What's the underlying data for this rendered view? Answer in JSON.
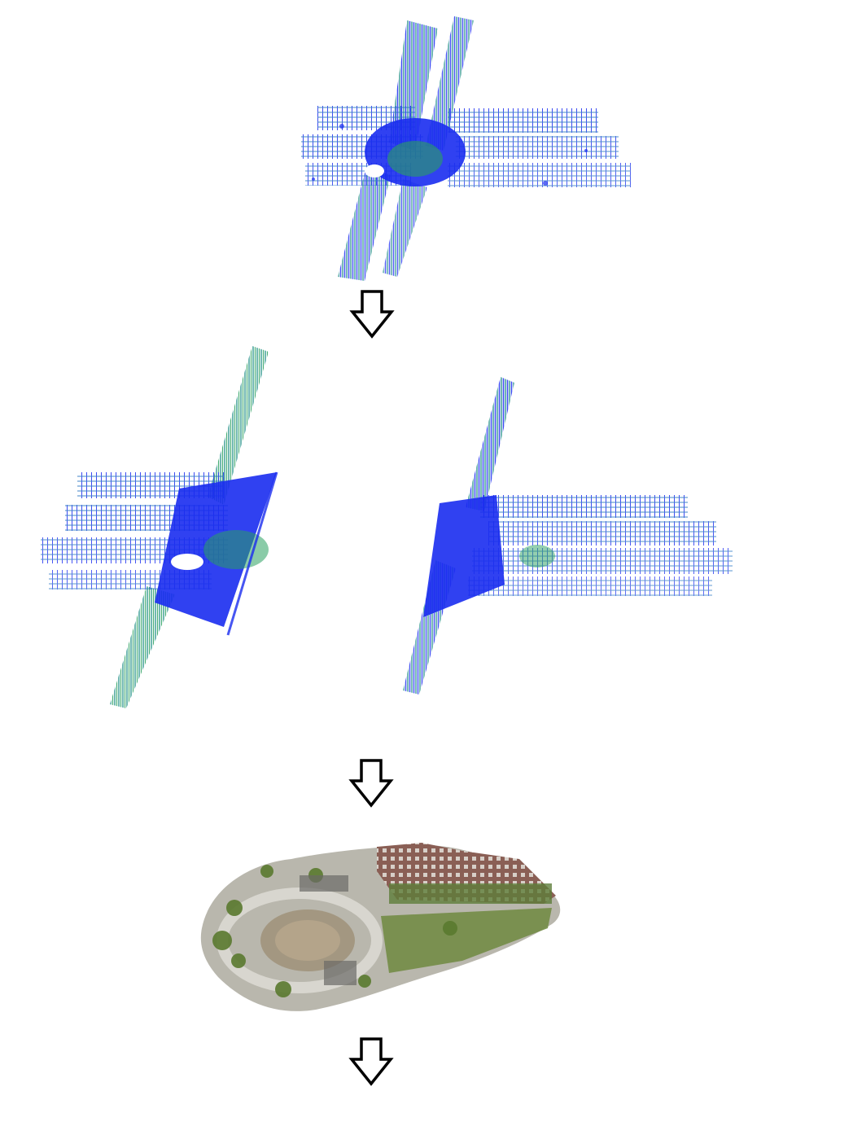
{
  "diagram": {
    "stages": [
      {
        "id": "full-point-cloud",
        "kind": "lidar-point-cloud-map"
      },
      {
        "id": "split-point-clouds",
        "kind": "partitioned-point-cloud-maps",
        "count": 2
      },
      {
        "id": "textured-reconstruction",
        "kind": "colored-3d-mesh"
      }
    ],
    "arrows": 3,
    "icons": [
      "down-arrow-icon"
    ],
    "colors": {
      "cloud_blue": "#1a2cf0",
      "cloud_teal": "#1f8f86",
      "cloud_green": "#2aa060",
      "arrow_stroke": "#000000",
      "mesh_ground": "#b9b7ad",
      "mesh_building": "#8a5f55",
      "mesh_vegetation": "#6f8a3f"
    }
  }
}
